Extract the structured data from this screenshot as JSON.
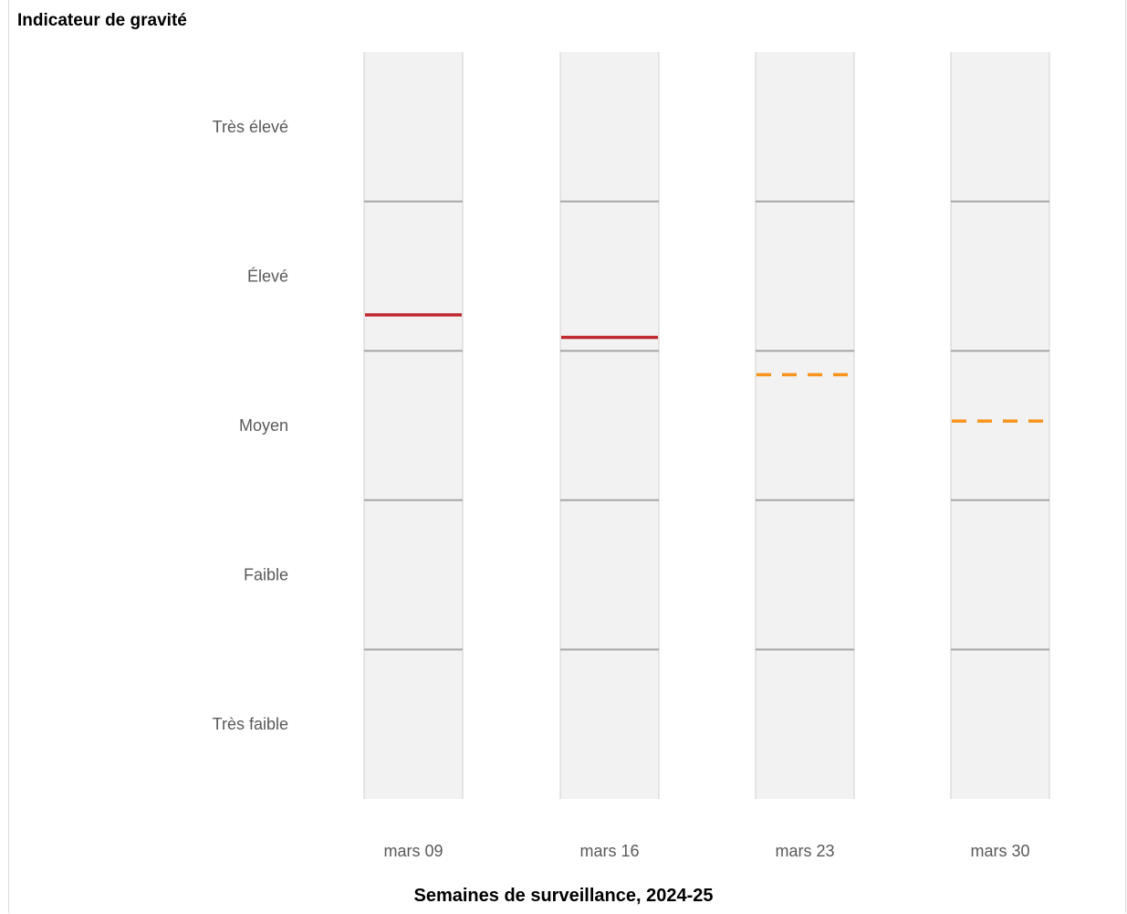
{
  "chart_data": {
    "type": "bar",
    "title": "Indicateur de gravité",
    "xlabel": "Semaines de surveillance, 2024-25",
    "levels": [
      "Très faible",
      "Faible",
      "Moyen",
      "Élevé",
      "Très élevé"
    ],
    "ylim": [
      0,
      5
    ],
    "categories": [
      "mars 09",
      "mars 16",
      "mars 23",
      "mars 30"
    ],
    "values": [
      3.24,
      3.09,
      2.84,
      2.53
    ],
    "line_styles": [
      "solid",
      "solid",
      "dashed",
      "dashed"
    ],
    "line_colors": [
      "#c0272d",
      "#c0272d",
      "#f7941d",
      "#f7941d"
    ],
    "band_color": "#f2f2f2",
    "divider_color": "#a6a6a6"
  }
}
